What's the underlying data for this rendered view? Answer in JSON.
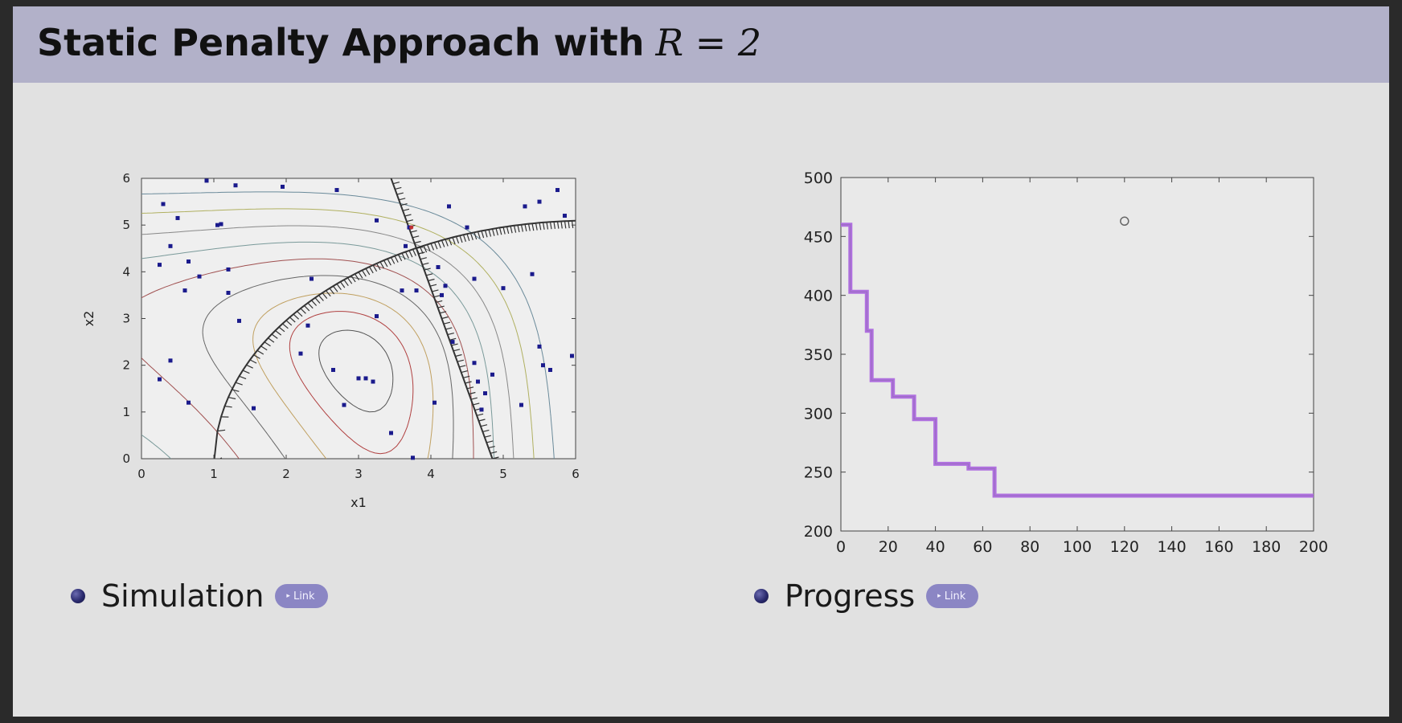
{
  "slide": {
    "title": "Static Penalty Approach with",
    "title_math": "R = 2"
  },
  "bullets": [
    {
      "label": "Simulation",
      "link_label": "Link",
      "link_icon": "triangle-right-icon"
    },
    {
      "label": "Progress",
      "link_label": "Link",
      "link_icon": "triangle-right-icon"
    }
  ],
  "colors": {
    "title_bar": "#b2b1c9",
    "background": "#e1e1e1",
    "points": "#1a1a8c",
    "progress": "#b070e0",
    "link_button": "#8b86c4"
  },
  "chart_data": [
    {
      "type": "scatter",
      "xlabel": "x1",
      "ylabel": "x2",
      "xlim": [
        0,
        6
      ],
      "ylim": [
        0,
        6
      ],
      "xticks": [
        "0",
        "1",
        "2",
        "3",
        "4",
        "5",
        "6"
      ],
      "yticks": [
        "0",
        "1",
        "2",
        "3",
        "4",
        "5",
        "6"
      ],
      "grid": false,
      "contours": true,
      "constraints": [
        "circular arc boundary",
        "linear boundary"
      ],
      "points": [
        [
          0.9,
          5.95
        ],
        [
          1.3,
          5.85
        ],
        [
          1.95,
          5.82
        ],
        [
          2.7,
          5.75
        ],
        [
          0.3,
          5.45
        ],
        [
          0.5,
          5.15
        ],
        [
          1.05,
          5.0
        ],
        [
          1.1,
          5.02
        ],
        [
          0.4,
          4.55
        ],
        [
          0.25,
          4.15
        ],
        [
          0.65,
          4.22
        ],
        [
          0.8,
          3.9
        ],
        [
          1.2,
          4.05
        ],
        [
          0.6,
          3.6
        ],
        [
          1.2,
          3.55
        ],
        [
          1.35,
          2.95
        ],
        [
          0.4,
          2.1
        ],
        [
          0.25,
          1.7
        ],
        [
          0.65,
          1.2
        ],
        [
          1.55,
          1.08
        ],
        [
          2.2,
          2.25
        ],
        [
          2.3,
          2.85
        ],
        [
          2.35,
          3.85
        ],
        [
          2.65,
          1.9
        ],
        [
          2.8,
          1.15
        ],
        [
          3.0,
          1.72
        ],
        [
          3.1,
          1.72
        ],
        [
          3.2,
          1.65
        ],
        [
          3.25,
          3.05
        ],
        [
          3.25,
          5.1
        ],
        [
          3.45,
          0.55
        ],
        [
          3.6,
          3.6
        ],
        [
          3.65,
          4.55
        ],
        [
          3.7,
          4.95
        ],
        [
          3.75,
          0.02
        ],
        [
          3.8,
          3.6
        ],
        [
          4.05,
          1.2
        ],
        [
          4.1,
          4.1
        ],
        [
          4.15,
          3.5
        ],
        [
          4.2,
          3.7
        ],
        [
          4.3,
          2.5
        ],
        [
          4.25,
          5.4
        ],
        [
          4.5,
          4.95
        ],
        [
          4.6,
          3.85
        ],
        [
          4.6,
          2.05
        ],
        [
          4.65,
          1.65
        ],
        [
          4.7,
          1.05
        ],
        [
          4.75,
          1.4
        ],
        [
          4.85,
          1.8
        ],
        [
          5.0,
          3.65
        ],
        [
          5.25,
          1.15
        ],
        [
          5.3,
          5.4
        ],
        [
          5.4,
          3.95
        ],
        [
          5.5,
          5.5
        ],
        [
          5.5,
          2.4
        ],
        [
          5.55,
          2.0
        ],
        [
          5.65,
          1.9
        ],
        [
          5.75,
          5.75
        ],
        [
          5.85,
          5.2
        ],
        [
          5.95,
          2.2
        ]
      ]
    },
    {
      "type": "line",
      "xlim": [
        0,
        200
      ],
      "ylim": [
        200,
        500
      ],
      "xticks": [
        "0",
        "20",
        "40",
        "60",
        "80",
        "100",
        "120",
        "140",
        "160",
        "180",
        "200"
      ],
      "yticks": [
        "200",
        "250",
        "300",
        "350",
        "400",
        "450",
        "500"
      ],
      "grid": false,
      "series": [
        {
          "x": [
            0,
            4,
            4,
            11,
            11,
            13,
            13,
            22,
            22,
            31,
            31,
            40,
            40,
            54,
            54,
            65,
            65,
            200
          ],
          "y": [
            460,
            460,
            403,
            403,
            370,
            370,
            328,
            328,
            314,
            314,
            295,
            295,
            257,
            257,
            253,
            253,
            230,
            230
          ]
        }
      ],
      "annotation_point": [
        120,
        463
      ]
    }
  ]
}
